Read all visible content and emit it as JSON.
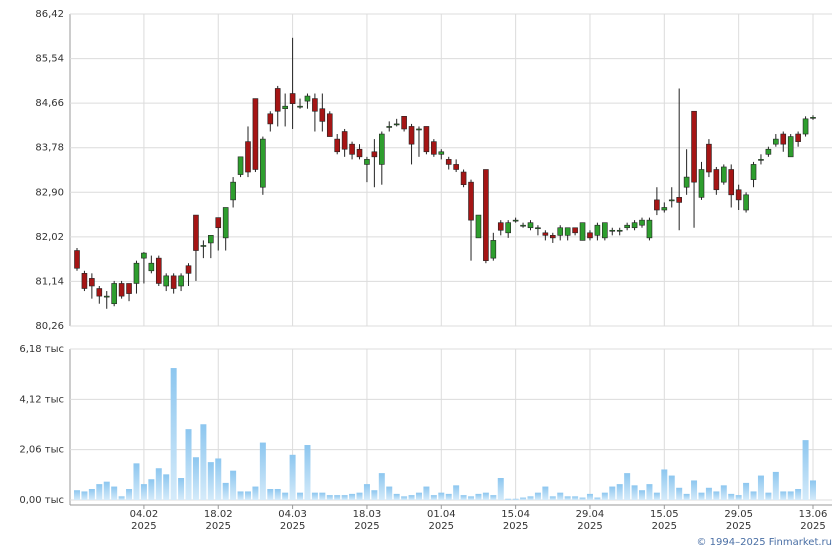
{
  "chart_data": [
    {
      "type": "candlestick",
      "x": [
        "2025-01-22",
        "2025-01-23",
        "2025-01-24",
        "2025-01-27",
        "2025-01-28",
        "2025-01-29",
        "2025-01-30",
        "2025-01-31",
        "2025-02-03",
        "2025-02-04",
        "2025-02-05",
        "2025-02-06",
        "2025-02-07",
        "2025-02-10",
        "2025-02-11",
        "2025-02-12",
        "2025-02-13",
        "2025-02-14",
        "2025-02-17",
        "2025-02-18",
        "2025-02-19",
        "2025-02-20",
        "2025-02-21",
        "2025-02-24",
        "2025-02-25",
        "2025-02-26",
        "2025-02-27",
        "2025-02-28",
        "2025-03-03",
        "2025-03-04",
        "2025-03-05",
        "2025-03-06",
        "2025-03-07",
        "2025-03-10",
        "2025-03-11",
        "2025-03-12",
        "2025-03-13",
        "2025-03-14",
        "2025-03-17",
        "2025-03-18",
        "2025-03-19",
        "2025-03-20",
        "2025-03-21",
        "2025-03-24",
        "2025-03-25",
        "2025-03-26",
        "2025-03-27",
        "2025-03-28",
        "2025-03-31",
        "2025-04-01",
        "2025-04-02",
        "2025-04-03",
        "2025-04-04",
        "2025-04-07",
        "2025-04-08",
        "2025-04-09",
        "2025-04-10",
        "2025-04-11",
        "2025-04-14",
        "2025-04-15",
        "2025-04-16",
        "2025-04-17",
        "2025-04-18",
        "2025-04-21",
        "2025-04-22",
        "2025-04-23",
        "2025-04-24",
        "2025-04-25",
        "2025-04-28",
        "2025-04-29",
        "2025-04-30",
        "2025-05-02",
        "2025-05-05",
        "2025-05-06",
        "2025-05-07",
        "2025-05-08",
        "2025-05-12",
        "2025-05-13",
        "2025-05-14",
        "2025-05-15",
        "2025-05-16",
        "2025-05-19",
        "2025-05-20",
        "2025-05-21",
        "2025-05-22",
        "2025-05-23",
        "2025-05-26",
        "2025-05-27",
        "2025-05-28",
        "2025-05-29",
        "2025-05-30",
        "2025-06-02",
        "2025-06-03",
        "2025-06-04",
        "2025-06-05",
        "2025-06-06",
        "2025-06-09",
        "2025-06-10",
        "2025-06-11",
        "2025-06-13"
      ],
      "open": [
        81.75,
        81.3,
        81.2,
        81.0,
        80.85,
        80.7,
        81.1,
        81.1,
        81.1,
        81.6,
        81.35,
        81.6,
        81.05,
        81.25,
        81.05,
        81.45,
        82.45,
        81.85,
        81.9,
        82.4,
        82.0,
        82.75,
        83.25,
        83.9,
        84.75,
        83.0,
        84.45,
        84.95,
        84.55,
        84.85,
        84.6,
        84.7,
        84.75,
        84.55,
        84.45,
        83.95,
        84.1,
        83.85,
        83.75,
        83.45,
        83.7,
        83.45,
        84.2,
        84.25,
        84.4,
        84.2,
        84.15,
        84.2,
        83.9,
        83.65,
        83.55,
        83.45,
        83.3,
        83.1,
        82.0,
        83.35,
        81.6,
        82.3,
        82.1,
        82.35,
        82.25,
        82.2,
        82.2,
        82.1,
        82.05,
        82.05,
        82.05,
        82.2,
        81.95,
        82.1,
        82.05,
        82.0,
        82.15,
        82.15,
        82.2,
        82.2,
        82.25,
        82.0,
        82.75,
        82.55,
        82.75,
        82.8,
        83.0,
        84.5,
        82.8,
        83.85,
        83.35,
        83.1,
        83.35,
        82.95,
        82.55,
        83.15,
        83.55,
        83.65,
        83.85,
        84.05,
        83.6,
        84.05,
        84.05,
        84.38
      ],
      "high": [
        81.8,
        81.35,
        81.3,
        81.05,
        80.95,
        81.15,
        81.15,
        81.1,
        81.55,
        81.72,
        81.65,
        81.65,
        81.3,
        81.3,
        81.3,
        81.5,
        82.45,
        81.95,
        82.05,
        82.4,
        82.6,
        83.2,
        83.6,
        84.2,
        84.75,
        84.0,
        84.5,
        85.0,
        84.85,
        85.95,
        84.75,
        84.85,
        84.85,
        84.85,
        84.5,
        84.05,
        84.15,
        83.9,
        83.85,
        83.6,
        83.95,
        84.1,
        84.3,
        84.35,
        84.4,
        84.25,
        84.2,
        84.2,
        83.95,
        83.75,
        83.6,
        83.55,
        83.35,
        83.15,
        82.45,
        83.35,
        82.1,
        82.35,
        82.35,
        82.4,
        82.3,
        82.35,
        82.25,
        82.15,
        82.1,
        82.25,
        82.2,
        82.2,
        82.3,
        82.15,
        82.3,
        82.3,
        82.2,
        82.2,
        82.3,
        82.35,
        82.4,
        82.4,
        83.0,
        82.7,
        83.0,
        84.95,
        83.75,
        84.5,
        83.5,
        83.95,
        83.4,
        83.45,
        83.45,
        83.05,
        82.9,
        83.5,
        83.65,
        83.8,
        84.05,
        84.1,
        84.05,
        84.1,
        84.4,
        84.42
      ],
      "low": [
        81.35,
        80.95,
        80.8,
        80.7,
        80.6,
        80.65,
        80.8,
        80.75,
        80.9,
        81.1,
        81.3,
        81.05,
        80.95,
        80.9,
        80.95,
        81.05,
        81.15,
        81.6,
        81.6,
        81.75,
        81.75,
        82.6,
        83.2,
        83.2,
        83.3,
        82.85,
        84.1,
        84.2,
        84.2,
        84.15,
        84.55,
        84.55,
        84.1,
        84.1,
        84.0,
        83.65,
        83.6,
        83.55,
        83.55,
        83.1,
        83.0,
        83.05,
        84.1,
        84.2,
        84.1,
        83.45,
        83.6,
        83.65,
        83.6,
        83.55,
        83.35,
        83.3,
        83.0,
        81.55,
        82.0,
        81.5,
        81.55,
        82.05,
        82.0,
        82.3,
        82.2,
        82.15,
        82.05,
        81.95,
        81.9,
        81.95,
        81.95,
        82.05,
        81.95,
        81.95,
        81.95,
        81.95,
        82.05,
        82.05,
        82.15,
        82.15,
        82.2,
        81.95,
        82.45,
        82.5,
        82.6,
        82.15,
        82.85,
        82.2,
        82.75,
        83.2,
        82.85,
        83.05,
        82.6,
        82.55,
        82.5,
        83.0,
        83.45,
        83.6,
        83.8,
        83.7,
        83.6,
        83.8,
        84.0,
        84.33
      ],
      "close": [
        81.4,
        81.0,
        81.05,
        80.85,
        80.85,
        81.1,
        80.85,
        80.9,
        81.5,
        81.7,
        81.5,
        81.1,
        81.25,
        81.0,
        81.25,
        81.3,
        81.75,
        81.85,
        82.05,
        82.2,
        82.6,
        83.1,
        83.6,
        83.3,
        83.35,
        83.95,
        84.25,
        84.5,
        84.6,
        84.65,
        84.6,
        84.8,
        84.5,
        84.3,
        84.0,
        83.7,
        83.75,
        83.65,
        83.6,
        83.55,
        83.6,
        84.05,
        84.2,
        84.25,
        84.15,
        83.85,
        84.15,
        83.7,
        83.65,
        83.7,
        83.45,
        83.35,
        83.05,
        82.35,
        82.45,
        81.55,
        81.95,
        82.15,
        82.3,
        82.35,
        82.25,
        82.3,
        82.2,
        82.05,
        82.0,
        82.2,
        82.2,
        82.1,
        82.3,
        82.0,
        82.25,
        82.3,
        82.15,
        82.15,
        82.25,
        82.3,
        82.35,
        82.35,
        82.55,
        82.6,
        82.75,
        82.7,
        83.2,
        83.1,
        83.35,
        83.3,
        82.95,
        83.4,
        82.85,
        82.75,
        82.85,
        83.45,
        83.55,
        83.75,
        83.95,
        83.85,
        84.0,
        83.9,
        84.35,
        84.38
      ],
      "up_color": "#2e9e2e",
      "down_color": "#a51515",
      "ylim": [
        80.26,
        86.42
      ],
      "yticks": [
        {
          "value": 80.26,
          "label": "80,26"
        },
        {
          "value": 81.14,
          "label": "81,14"
        },
        {
          "value": 82.02,
          "label": "82,02"
        },
        {
          "value": 82.9,
          "label": "82,90"
        },
        {
          "value": 83.78,
          "label": "83,78"
        },
        {
          "value": 84.66,
          "label": "84,66"
        },
        {
          "value": 85.54,
          "label": "85,54"
        },
        {
          "value": 86.42,
          "label": "86,42"
        }
      ],
      "grid": true
    },
    {
      "type": "bar",
      "values": [
        400,
        350,
        450,
        650,
        750,
        550,
        150,
        450,
        1500,
        650,
        850,
        1300,
        1050,
        5400,
        900,
        2900,
        1750,
        3100,
        1550,
        1700,
        700,
        1200,
        350,
        350,
        550,
        2350,
        450,
        450,
        300,
        1850,
        300,
        2250,
        300,
        300,
        200,
        200,
        200,
        250,
        300,
        650,
        400,
        1100,
        550,
        250,
        150,
        200,
        300,
        550,
        200,
        300,
        250,
        600,
        200,
        150,
        250,
        300,
        200,
        900,
        50,
        50,
        100,
        150,
        300,
        550,
        150,
        300,
        150,
        150,
        100,
        250,
        100,
        300,
        550,
        650,
        1100,
        600,
        400,
        650,
        300,
        1250,
        1000,
        500,
        250,
        800,
        300,
        500,
        350,
        600,
        250,
        200,
        700,
        350,
        1000,
        300,
        1150,
        350,
        350,
        450,
        2450,
        800
      ],
      "color": "#8cc6ef",
      "ylim": [
        0,
        6180
      ],
      "yticks": [
        {
          "value": 0,
          "label": "0,00 тыс"
        },
        {
          "value": 2060,
          "label": "2,06 тыс"
        },
        {
          "value": 4120,
          "label": "4,12 тыс"
        },
        {
          "value": 6180,
          "label": "6,18 тыс"
        }
      ],
      "xticks": [
        {
          "value": "2025-02-04",
          "label": "04.02",
          "year": "2025"
        },
        {
          "value": "2025-02-18",
          "label": "18.02",
          "year": "2025"
        },
        {
          "value": "2025-03-04",
          "label": "04.03",
          "year": "2025"
        },
        {
          "value": "2025-03-18",
          "label": "18.03",
          "year": "2025"
        },
        {
          "value": "2025-04-01",
          "label": "01.04",
          "year": "2025"
        },
        {
          "value": "2025-04-15",
          "label": "15.04",
          "year": "2025"
        },
        {
          "value": "2025-04-29",
          "label": "29.04",
          "year": "2025"
        },
        {
          "value": "2025-05-15",
          "label": "15.05",
          "year": "2025"
        },
        {
          "value": "2025-05-29",
          "label": "29.05",
          "year": "2025"
        },
        {
          "value": "2025-06-13",
          "label": "13.06",
          "year": "2025"
        }
      ],
      "grid": true
    }
  ],
  "footer": "© 1994–2025 Finmarket.ru"
}
